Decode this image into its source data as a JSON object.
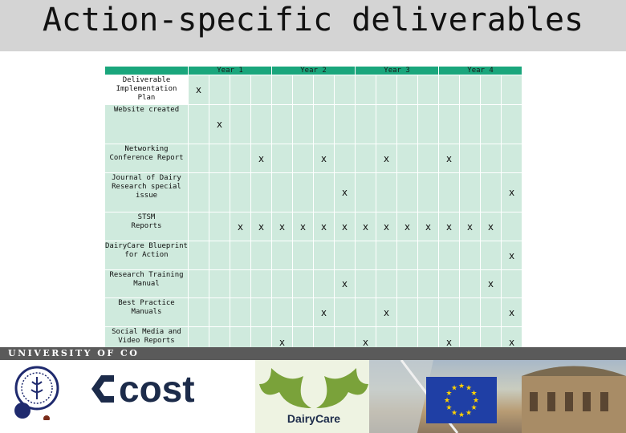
{
  "title": "Action-specific deliverables",
  "footer": {
    "university": "UNIVERSITY OF CO"
  },
  "table": {
    "year_headers": [
      "Year 1",
      "Year 2",
      "Year 3",
      "Year 4"
    ],
    "rows": [
      {
        "label_lines": [
          "Deliverable",
          "Implementation",
          "Plan"
        ],
        "marks": [
          1
        ]
      },
      {
        "label_lines": [
          "Website created"
        ],
        "marks": [
          2
        ]
      },
      {
        "label_lines": [
          "Networking",
          "Conference Report"
        ],
        "marks": [
          4,
          7,
          10,
          13
        ]
      },
      {
        "label_lines": [
          "Journal of Dairy",
          "Research special",
          "issue"
        ],
        "marks": [
          8,
          16
        ]
      },
      {
        "label_lines": [
          "STSM",
          "Reports"
        ],
        "marks": [
          3,
          4,
          5,
          6,
          7,
          8,
          9,
          10,
          11,
          12,
          13,
          14,
          15
        ]
      },
      {
        "label_lines": [
          "DairyCare Blueprint",
          "for Action"
        ],
        "marks": [
          16
        ]
      },
      {
        "label_lines": [
          "Research Training",
          "Manual"
        ],
        "marks": [
          8,
          15
        ]
      },
      {
        "label_lines": [
          "Best Practice",
          "Manuals"
        ],
        "marks": [
          7,
          10,
          16
        ]
      },
      {
        "label_lines": [
          "Social Media and",
          "Video Reports"
        ],
        "marks": [
          5,
          9,
          13,
          16
        ]
      }
    ],
    "mark_symbol": "x"
  },
  "logos": {
    "cost_text": "cost",
    "dairycare_text": "DairyCare"
  },
  "colors": {
    "header": "#1aa67c",
    "cell": "#cfeadd",
    "title_band": "#d4d4d4",
    "cost_navy": "#1c2b4a",
    "dairycare_green": "#7aa23a"
  }
}
